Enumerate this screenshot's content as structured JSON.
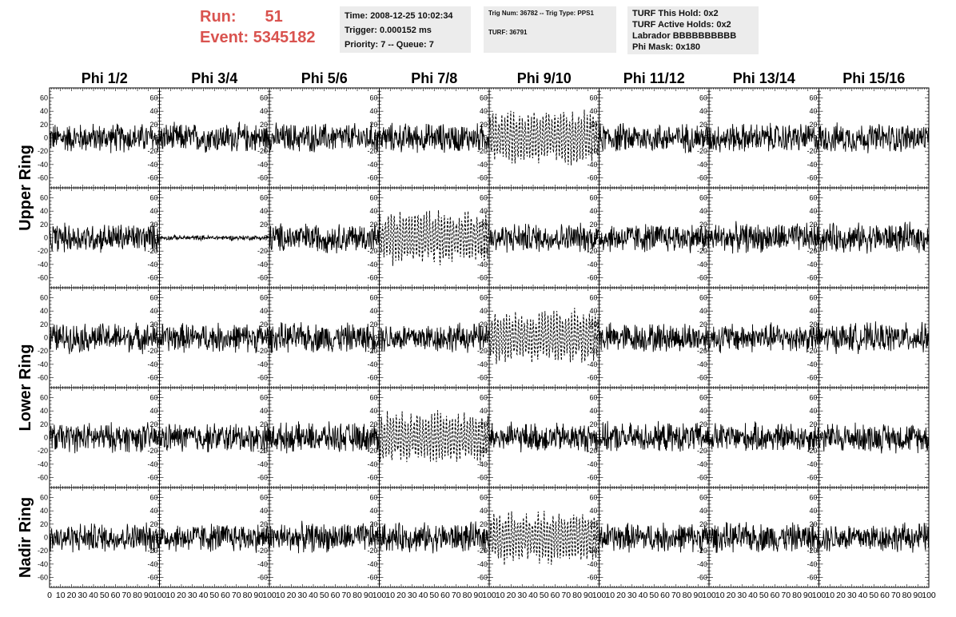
{
  "header": {
    "run_label": "Run:",
    "run_value": "51",
    "event_label": "Event:",
    "event_value": "5345182",
    "time": "Time: 2008-12-25 10:02:34",
    "trigger": "Trigger: 0.000152 ms",
    "priority": "Priority: 7 -- Queue: 7",
    "trig_num": "Trig Num: 36782 -- Trig Type: PPS1",
    "turf": "TURF: 36791",
    "turf_this_hold": "TURF This Hold: 0x2",
    "turf_active_holds": "TURF Active Holds: 0x2",
    "labrador": "Labrador BBBBBBBBBB",
    "phi_mask": "Phi Mask: 0x180"
  },
  "colors": {
    "header_red": "#d9534f",
    "info_bg": "#ececec",
    "trace": "#000000"
  },
  "chart_data": {
    "type": "line",
    "layout": "grid of waveform panels",
    "columns": [
      "Phi 1/2",
      "Phi 3/4",
      "Phi 5/6",
      "Phi 7/8",
      "Phi 9/10",
      "Phi 11/12",
      "Phi 13/14",
      "Phi 15/16"
    ],
    "row_labels": [
      "Upper Ring",
      "Lower Ring",
      "Nadir Ring"
    ],
    "panel_rows": 5,
    "xlim": [
      0,
      100
    ],
    "ylim": [
      -75,
      75
    ],
    "x_ticks": [
      0,
      10,
      20,
      30,
      40,
      50,
      60,
      70,
      80,
      90,
      100
    ],
    "x_tick_labels": [
      "0",
      "10",
      "20",
      "30",
      "40",
      "50",
      "60",
      "70",
      "80",
      "90",
      "100"
    ],
    "y_ticks": [
      -60,
      -40,
      -20,
      0,
      20,
      40,
      60
    ],
    "y_tick_labels": [
      "-60",
      "-40",
      "-20",
      "0",
      "20",
      "40",
      "60"
    ],
    "highlighted_panels": [
      {
        "row": 0,
        "col": 4
      },
      {
        "row": 1,
        "col": 3
      },
      {
        "row": 2,
        "col": 4
      },
      {
        "row": 3,
        "col": 3
      },
      {
        "row": 4,
        "col": 4
      }
    ],
    "quiet_panels": [
      {
        "row": 1,
        "col": 1
      }
    ],
    "noise_amplitude": 18,
    "highlight_amplitude": 40,
    "quiet_amplitude": 3
  }
}
